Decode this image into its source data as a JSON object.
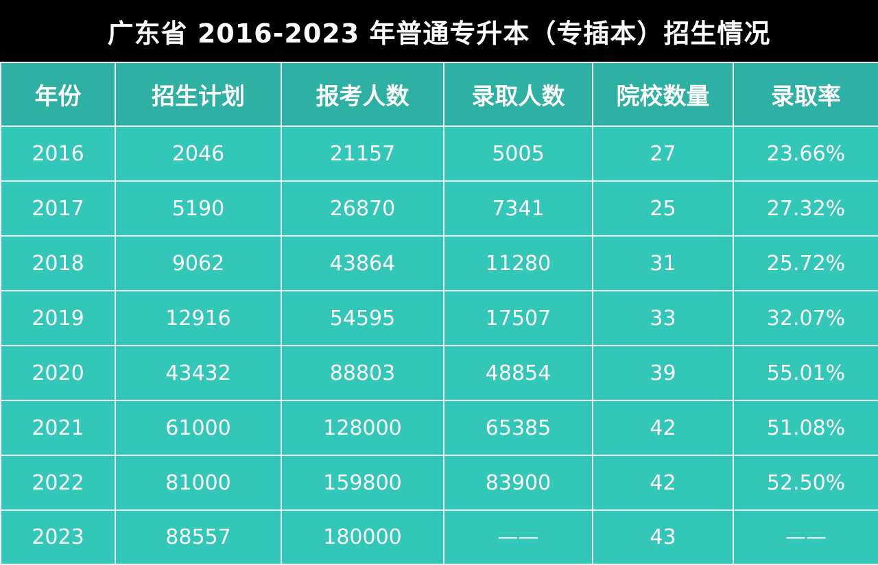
{
  "title": "广东省 2016-2023 年普通专升本（专插本）招生情况",
  "columns": [
    "年份",
    "招生计划",
    "报考人数",
    "录取人数",
    "院校数量",
    "录取率"
  ],
  "rows": [
    [
      "2016",
      "2046",
      "21157",
      "5005",
      "27",
      "23.66%"
    ],
    [
      "2017",
      "5190",
      "26870",
      "7341",
      "25",
      "27.32%"
    ],
    [
      "2018",
      "9062",
      "43864",
      "11280",
      "31",
      "25.72%"
    ],
    [
      "2019",
      "12916",
      "54595",
      "17507",
      "33",
      "32.07%"
    ],
    [
      "2020",
      "43432",
      "88803",
      "48854",
      "39",
      "55.01%"
    ],
    [
      "2021",
      "61000",
      "128000",
      "65385",
      "42",
      "51.08%"
    ],
    [
      "2022",
      "81000",
      "159800",
      "83900",
      "42",
      "52.50%"
    ],
    [
      "2023",
      "88557",
      "180000",
      "——",
      "43",
      "——"
    ]
  ],
  "colors": {
    "title_bg": "#000000",
    "header_bg": "#2eb0a2",
    "cell_bg": "#33c7b7",
    "text": "#ffffff"
  }
}
